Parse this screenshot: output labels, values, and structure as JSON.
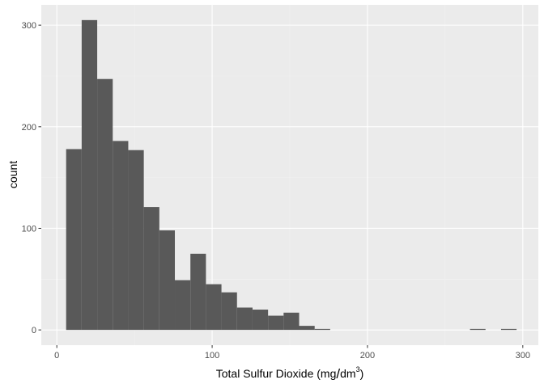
{
  "chart_data": {
    "type": "bar",
    "subtype": "histogram",
    "xlabel": "Total Sulfur Dioxide (mg/dm³)",
    "xlabel_parts": {
      "base": "Total Sulfur Dioxide (mg",
      "slash": "/",
      "unit": "dm",
      "superscript": "3",
      "close": ")"
    },
    "ylabel": "count",
    "xlim": [
      -10,
      310
    ],
    "ylim": [
      -15,
      320
    ],
    "x_ticks": [
      0,
      100,
      200,
      300
    ],
    "y_ticks": [
      0,
      100,
      200,
      300
    ],
    "x_tick_labels": [
      "0",
      "100",
      "200",
      "300"
    ],
    "y_tick_labels": [
      "0",
      "100",
      "200",
      "300"
    ],
    "grid": true,
    "bin_width": 10,
    "bins": [
      {
        "x_start": 6,
        "x_end": 16,
        "count": 178
      },
      {
        "x_start": 16,
        "x_end": 26,
        "count": 305
      },
      {
        "x_start": 26,
        "x_end": 36,
        "count": 247
      },
      {
        "x_start": 36,
        "x_end": 46,
        "count": 186
      },
      {
        "x_start": 46,
        "x_end": 56,
        "count": 177
      },
      {
        "x_start": 56,
        "x_end": 66,
        "count": 121
      },
      {
        "x_start": 66,
        "x_end": 76,
        "count": 98
      },
      {
        "x_start": 76,
        "x_end": 86,
        "count": 49
      },
      {
        "x_start": 86,
        "x_end": 96,
        "count": 75
      },
      {
        "x_start": 96,
        "x_end": 106,
        "count": 45
      },
      {
        "x_start": 106,
        "x_end": 116,
        "count": 37
      },
      {
        "x_start": 116,
        "x_end": 126,
        "count": 22
      },
      {
        "x_start": 126,
        "x_end": 136,
        "count": 20
      },
      {
        "x_start": 136,
        "x_end": 146,
        "count": 14
      },
      {
        "x_start": 146,
        "x_end": 156,
        "count": 17
      },
      {
        "x_start": 156,
        "x_end": 166,
        "count": 4
      },
      {
        "x_start": 166,
        "x_end": 176,
        "count": 1
      },
      {
        "x_start": 176,
        "x_end": 186,
        "count": 0
      },
      {
        "x_start": 186,
        "x_end": 196,
        "count": 0
      },
      {
        "x_start": 196,
        "x_end": 206,
        "count": 0
      },
      {
        "x_start": 206,
        "x_end": 216,
        "count": 0
      },
      {
        "x_start": 216,
        "x_end": 226,
        "count": 0
      },
      {
        "x_start": 226,
        "x_end": 236,
        "count": 0
      },
      {
        "x_start": 236,
        "x_end": 246,
        "count": 0
      },
      {
        "x_start": 246,
        "x_end": 256,
        "count": 0
      },
      {
        "x_start": 256,
        "x_end": 266,
        "count": 0
      },
      {
        "x_start": 266,
        "x_end": 276,
        "count": 1
      },
      {
        "x_start": 276,
        "x_end": 286,
        "count": 0
      },
      {
        "x_start": 286,
        "x_end": 296,
        "count": 1
      }
    ],
    "colors": {
      "bar": "#595959",
      "panel": "#ebebeb",
      "grid_major": "#ffffff",
      "grid_minor": "#f2f2f2",
      "tick_label": "#4d4d4d",
      "axis_title": "#000000"
    }
  }
}
